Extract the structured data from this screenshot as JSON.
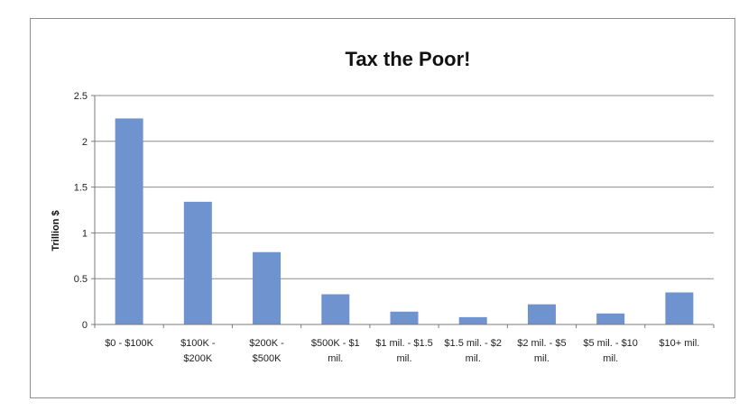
{
  "chart_data": {
    "type": "bar",
    "title": "Tax the Poor!",
    "xlabel": "",
    "ylabel": "Trillion $",
    "ylim": [
      0,
      2.5
    ],
    "yticks": [
      "0",
      "0.5",
      "1",
      "1.5",
      "2",
      "2.5"
    ],
    "grid": true,
    "legend": "none",
    "bar_color": "#6f93cf",
    "categories": [
      "$0 - $100K",
      "$100K - $200K",
      "$200K - $500K",
      "$500K - $1 mil.",
      "$1 mil. - $1.5 mil.",
      "$1.5 mil. - $2 mil.",
      "$2 mil. - $5 mil.",
      "$5 mil. - $10 mil.",
      "$10+ mil."
    ],
    "category_lines": [
      [
        "$0 - $100K"
      ],
      [
        "$100K -",
        "$200K"
      ],
      [
        "$200K -",
        "$500K"
      ],
      [
        "$500K - $1",
        "mil."
      ],
      [
        "$1 mil. - $1.5",
        "mil."
      ],
      [
        "$1.5 mil. - $2",
        "mil."
      ],
      [
        "$2 mil. - $5",
        "mil."
      ],
      [
        "$5 mil. - $10",
        "mil."
      ],
      [
        "$10+ mil."
      ]
    ],
    "values": [
      2.25,
      1.34,
      0.79,
      0.33,
      0.14,
      0.08,
      0.22,
      0.12,
      0.35
    ]
  }
}
